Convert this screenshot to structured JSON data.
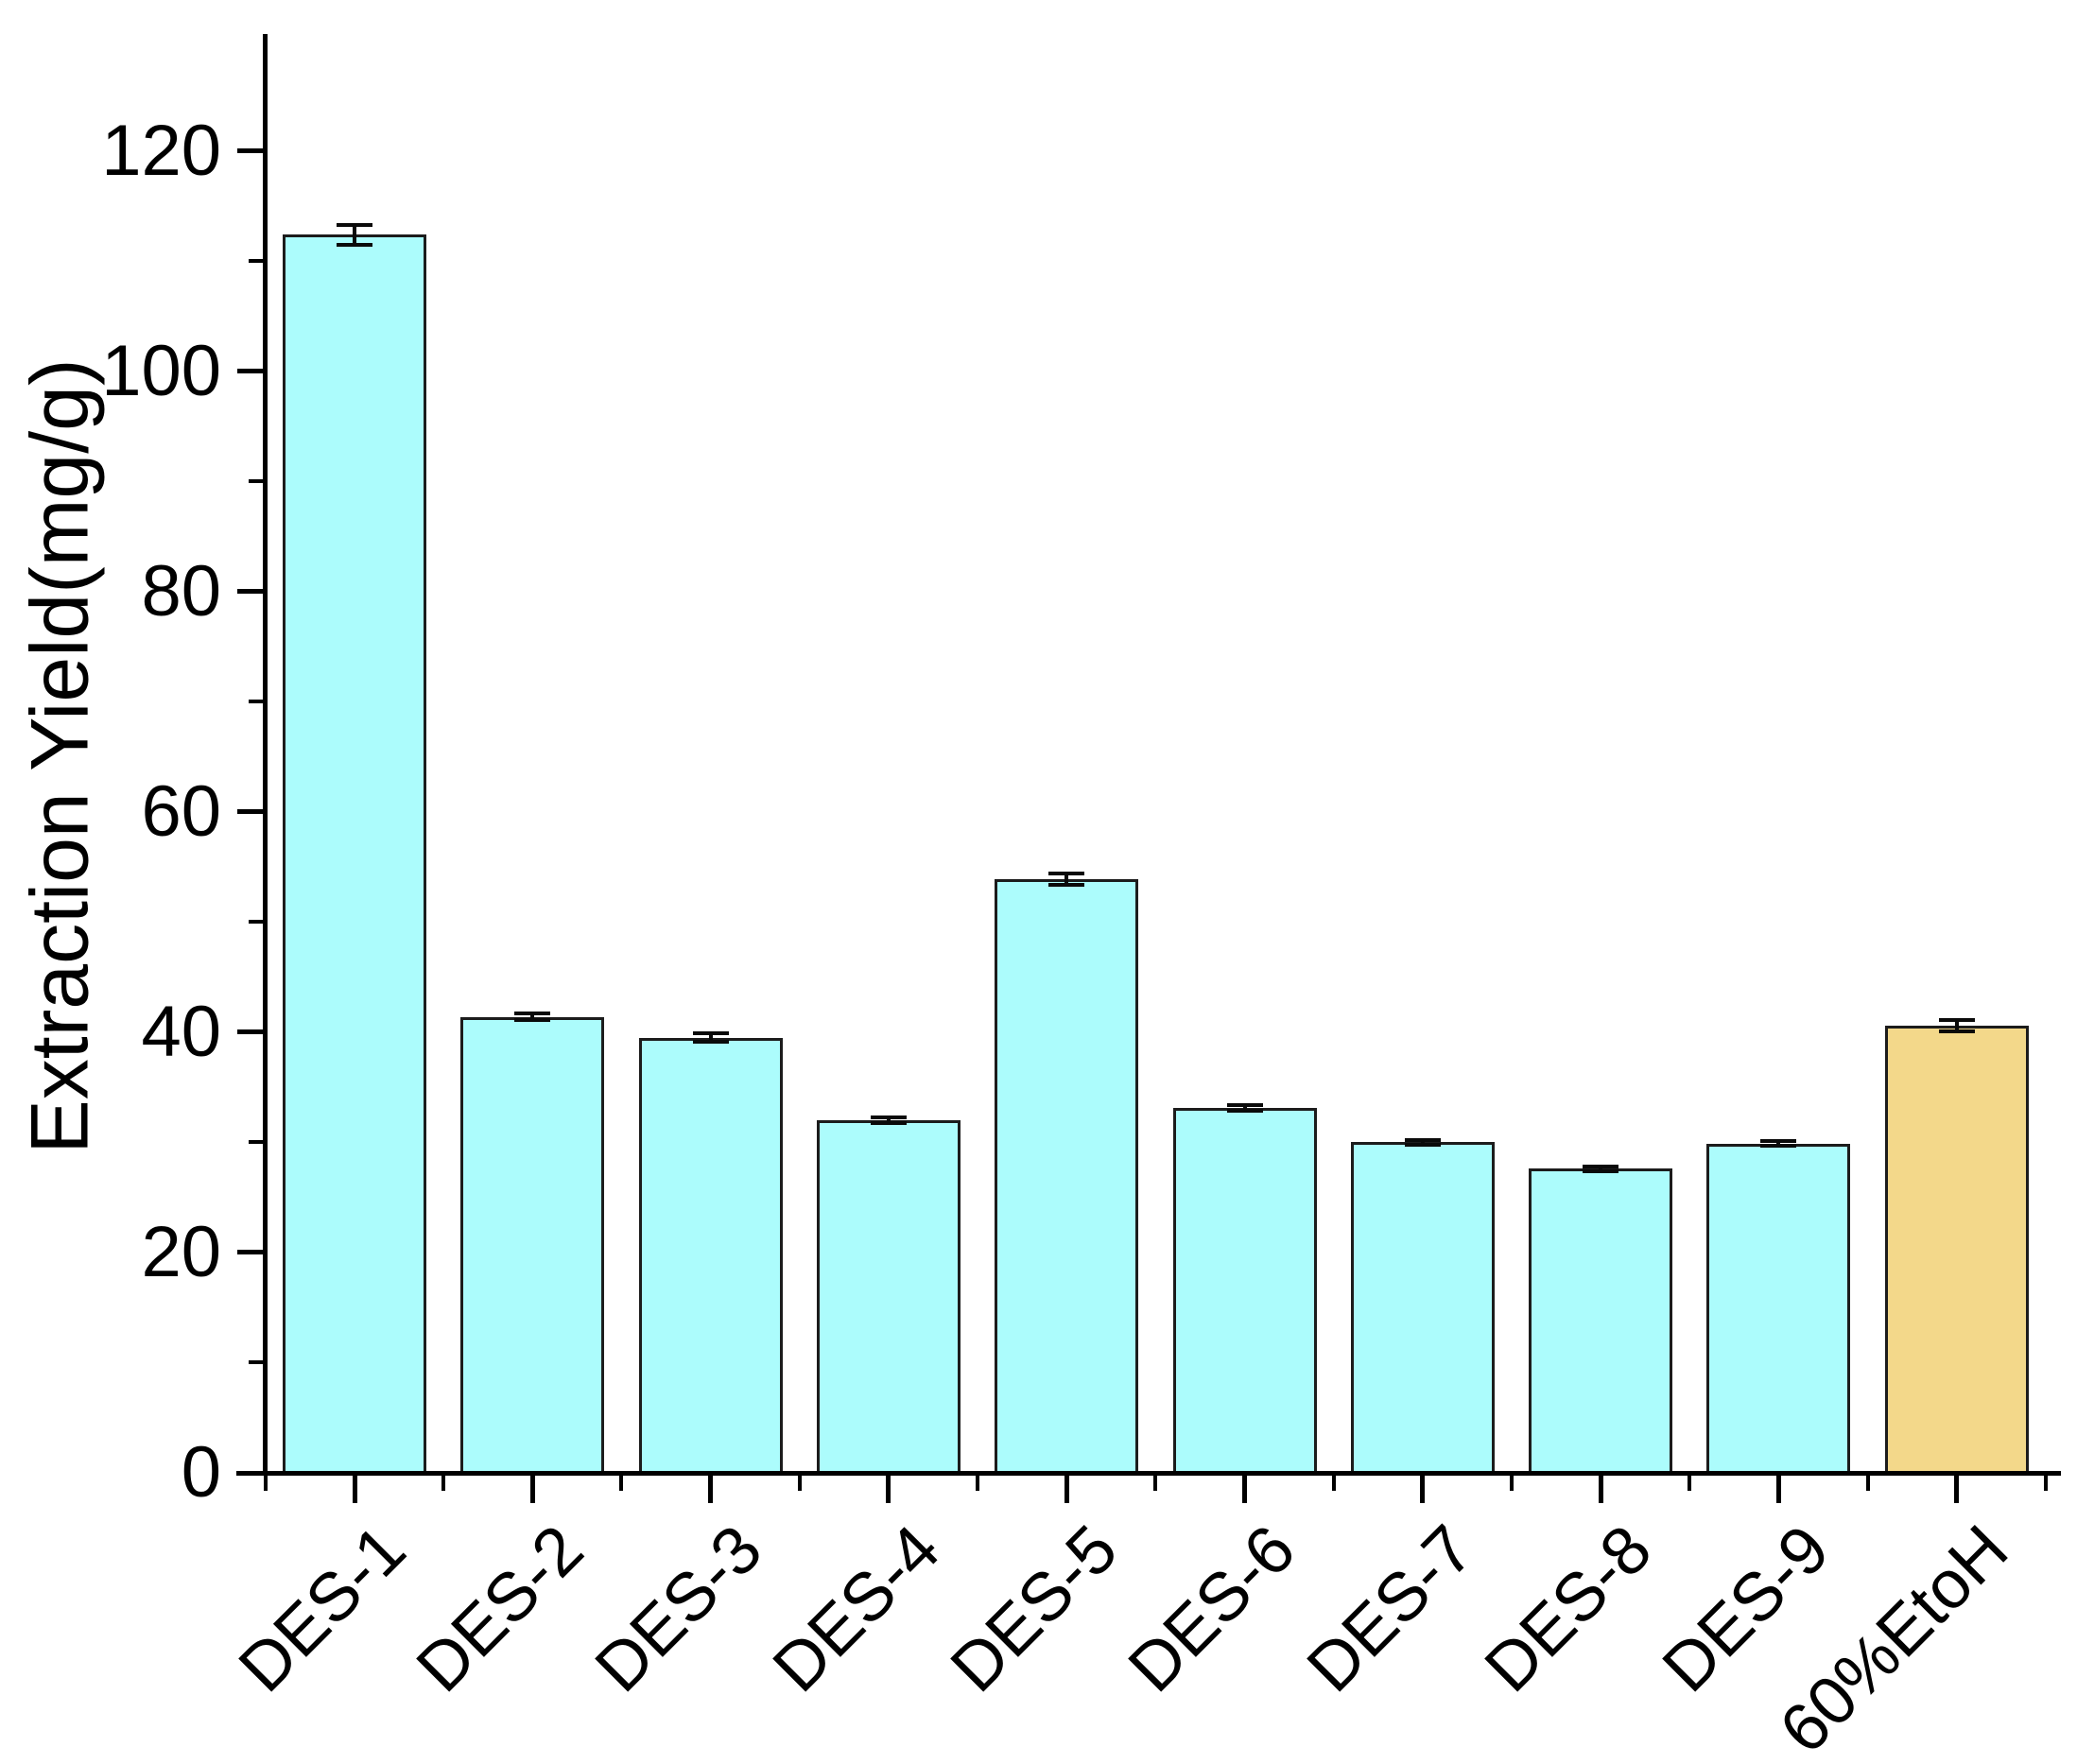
{
  "chart_data": {
    "type": "bar",
    "title": "",
    "xlabel": "",
    "ylabel": "Extraction Yield(mg/g)",
    "categories": [
      "DES-1",
      "DES-2",
      "DES-3",
      "DES-4",
      "DES-5",
      "DES-6",
      "DES-7",
      "DES-8",
      "DES-9",
      "60%EtoH"
    ],
    "values": [
      112.4,
      41.4,
      39.5,
      32.0,
      53.9,
      33.1,
      30.0,
      27.6,
      29.9,
      40.6
    ],
    "error_bars": [
      0.9,
      0.3,
      0.4,
      0.25,
      0.5,
      0.25,
      0.2,
      0.2,
      0.25,
      0.5
    ],
    "bar_colors": [
      "#ACFCFC",
      "#ACFCFC",
      "#ACFCFC",
      "#ACFCFC",
      "#ACFCFC",
      "#ACFCFC",
      "#ACFCFC",
      "#ACFCFC",
      "#ACFCFC",
      "#F3D88A"
    ],
    "bar_edge_color": "#1C1C1C",
    "error_bar_color": "#0A0A0A",
    "axis_color": "#000000",
    "tick_label_color": "#000000",
    "ylim": [
      0,
      130
    ],
    "yticks_major": [
      0,
      20,
      40,
      60,
      80,
      100,
      120
    ],
    "yticks_minor": [
      10,
      30,
      50,
      70,
      90,
      110
    ],
    "grid": false,
    "legend": null,
    "x_tick_label_rotation_deg": 45
  }
}
